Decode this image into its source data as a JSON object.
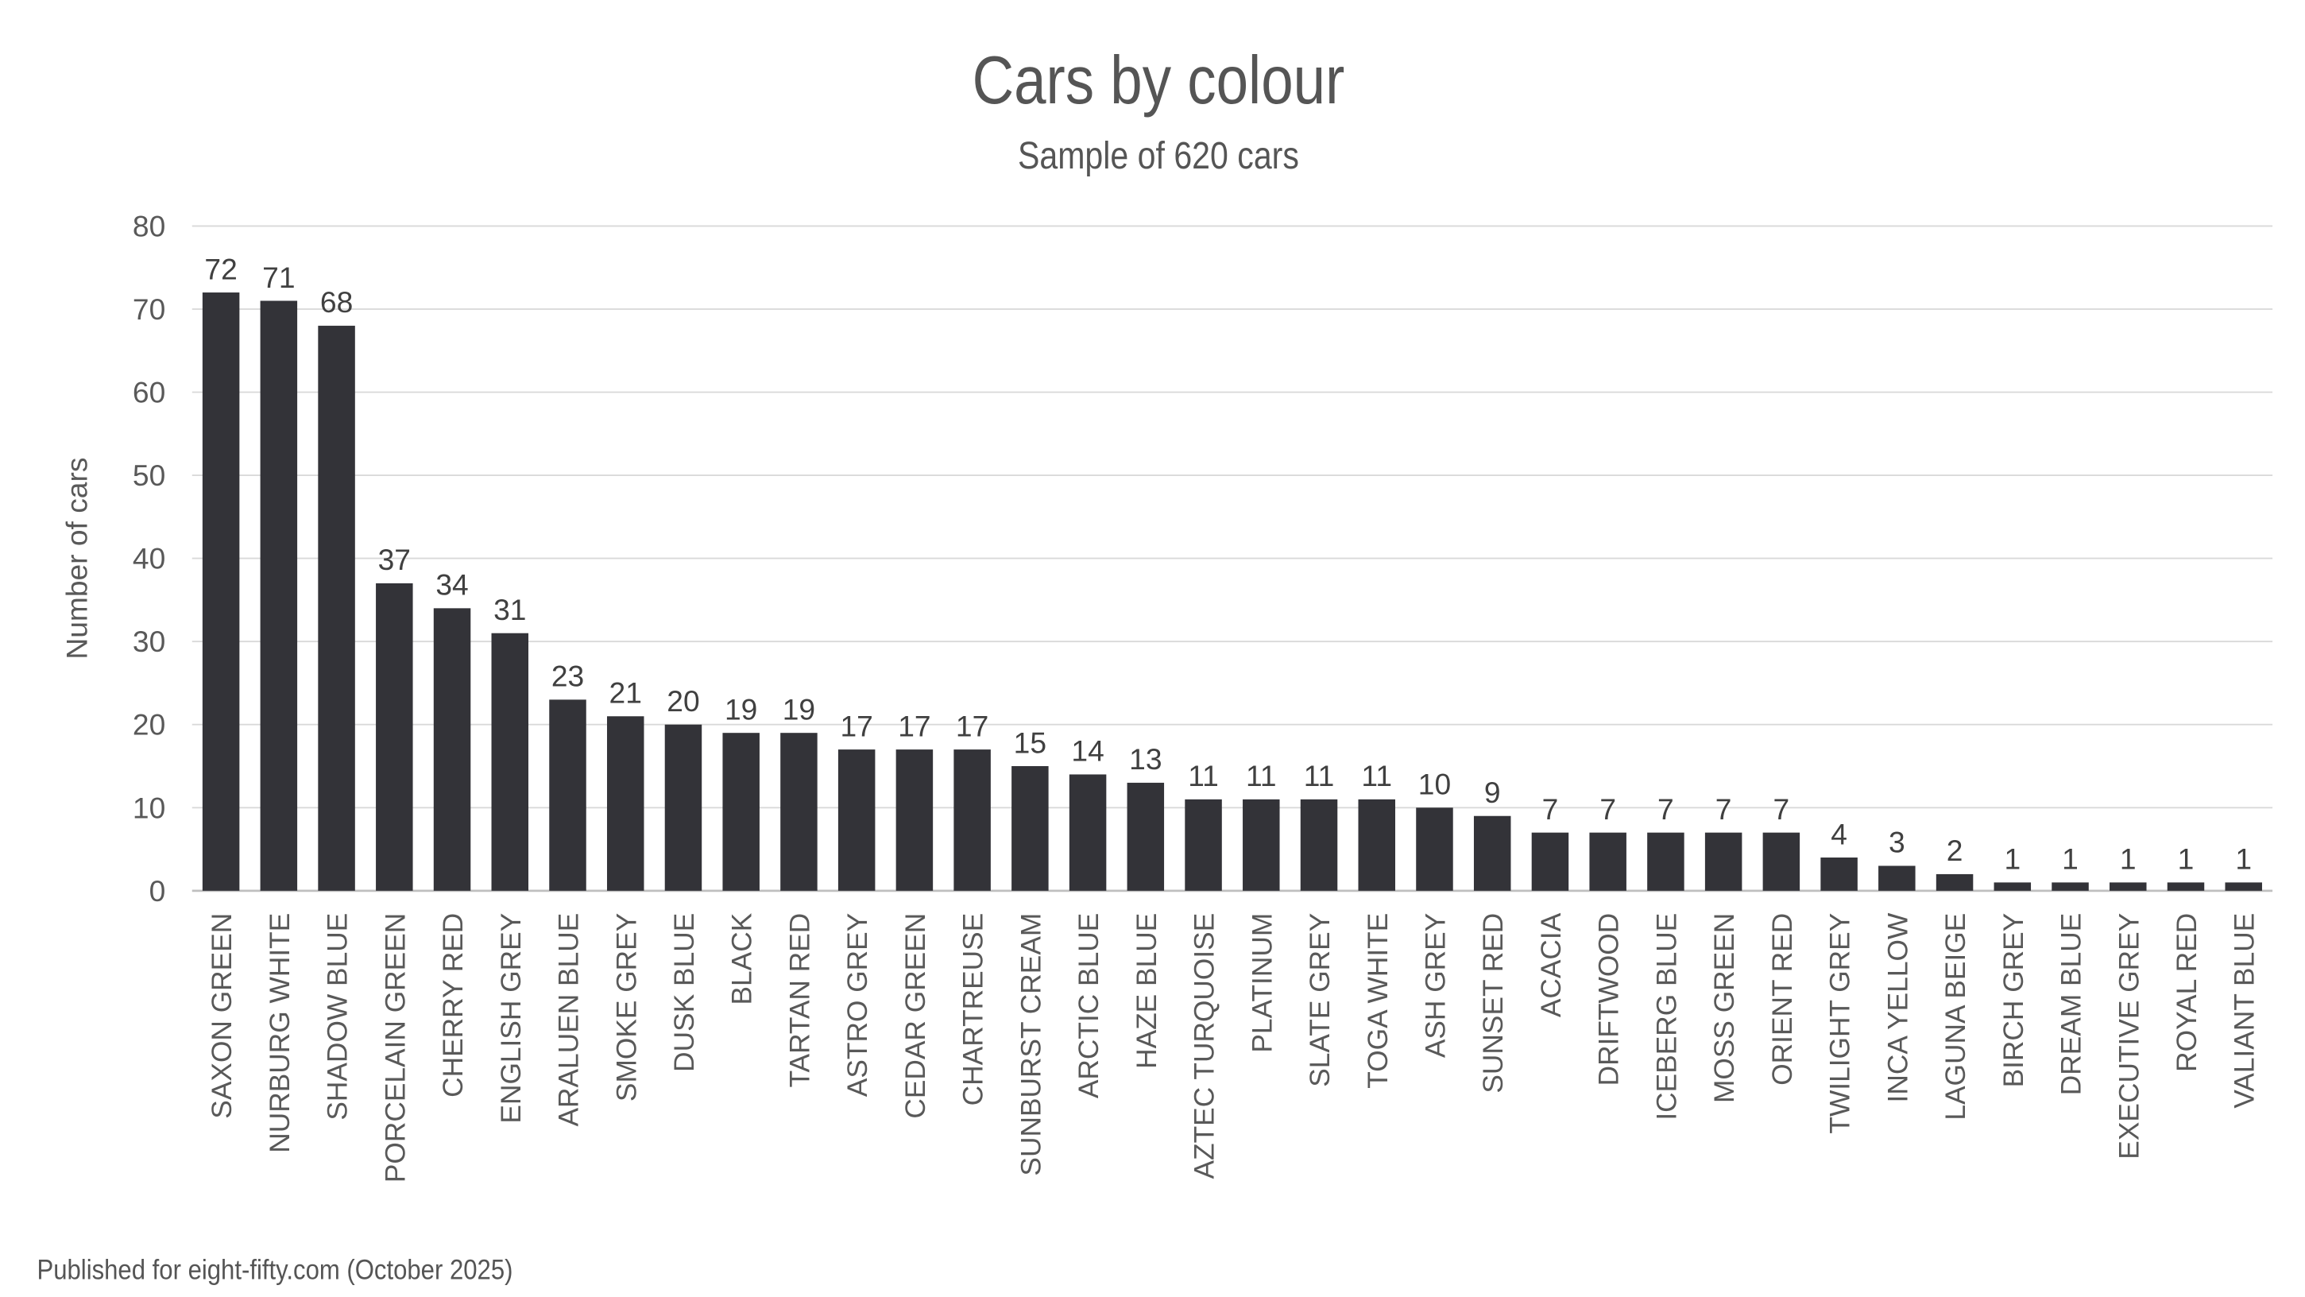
{
  "chart_data": {
    "type": "bar",
    "title": "Cars by colour",
    "subtitle": "Sample of 620 cars",
    "xlabel": "",
    "ylabel": "Number of cars",
    "ylim": [
      0,
      80
    ],
    "yticks": [
      0,
      10,
      20,
      30,
      40,
      50,
      60,
      70,
      80
    ],
    "grid": true,
    "bar_color": "#333338",
    "data_labels": true,
    "categories": [
      "SAXON GREEN",
      "NURBURG WHITE",
      "SHADOW BLUE",
      "PORCELAIN GREEN",
      "CHERRY RED",
      "ENGLISH GREY",
      "ARALUEN BLUE",
      "SMOKE GREY",
      "DUSK BLUE",
      "BLACK",
      "TARTAN RED",
      "ASTRO GREY",
      "CEDAR GREEN",
      "CHARTREUSE",
      "SUNBURST CREAM",
      "ARCTIC BLUE",
      "HAZE BLUE",
      "AZTEC TURQUOISE",
      "PLATINUM",
      "SLATE GREY",
      "TOGA WHITE",
      "ASH GREY",
      "SUNSET RED",
      "ACACIA",
      "DRIFTWOOD",
      "ICEBERG BLUE",
      "MOSS GREEN",
      "ORIENT RED",
      "TWILIGHT GREY",
      "INCA YELLOW",
      "LAGUNA BEIGE",
      "BIRCH GREY",
      "DREAM BLUE",
      "EXECUTIVE GREY",
      "ROYAL RED",
      "VALIANT BLUE"
    ],
    "values": [
      72,
      71,
      68,
      37,
      34,
      31,
      23,
      21,
      20,
      19,
      19,
      17,
      17,
      17,
      15,
      14,
      13,
      11,
      11,
      11,
      11,
      10,
      9,
      7,
      7,
      7,
      7,
      7,
      4,
      3,
      2,
      1,
      1,
      1,
      1,
      1
    ]
  },
  "footer": "Published for eight-fifty.com (October 2025)"
}
